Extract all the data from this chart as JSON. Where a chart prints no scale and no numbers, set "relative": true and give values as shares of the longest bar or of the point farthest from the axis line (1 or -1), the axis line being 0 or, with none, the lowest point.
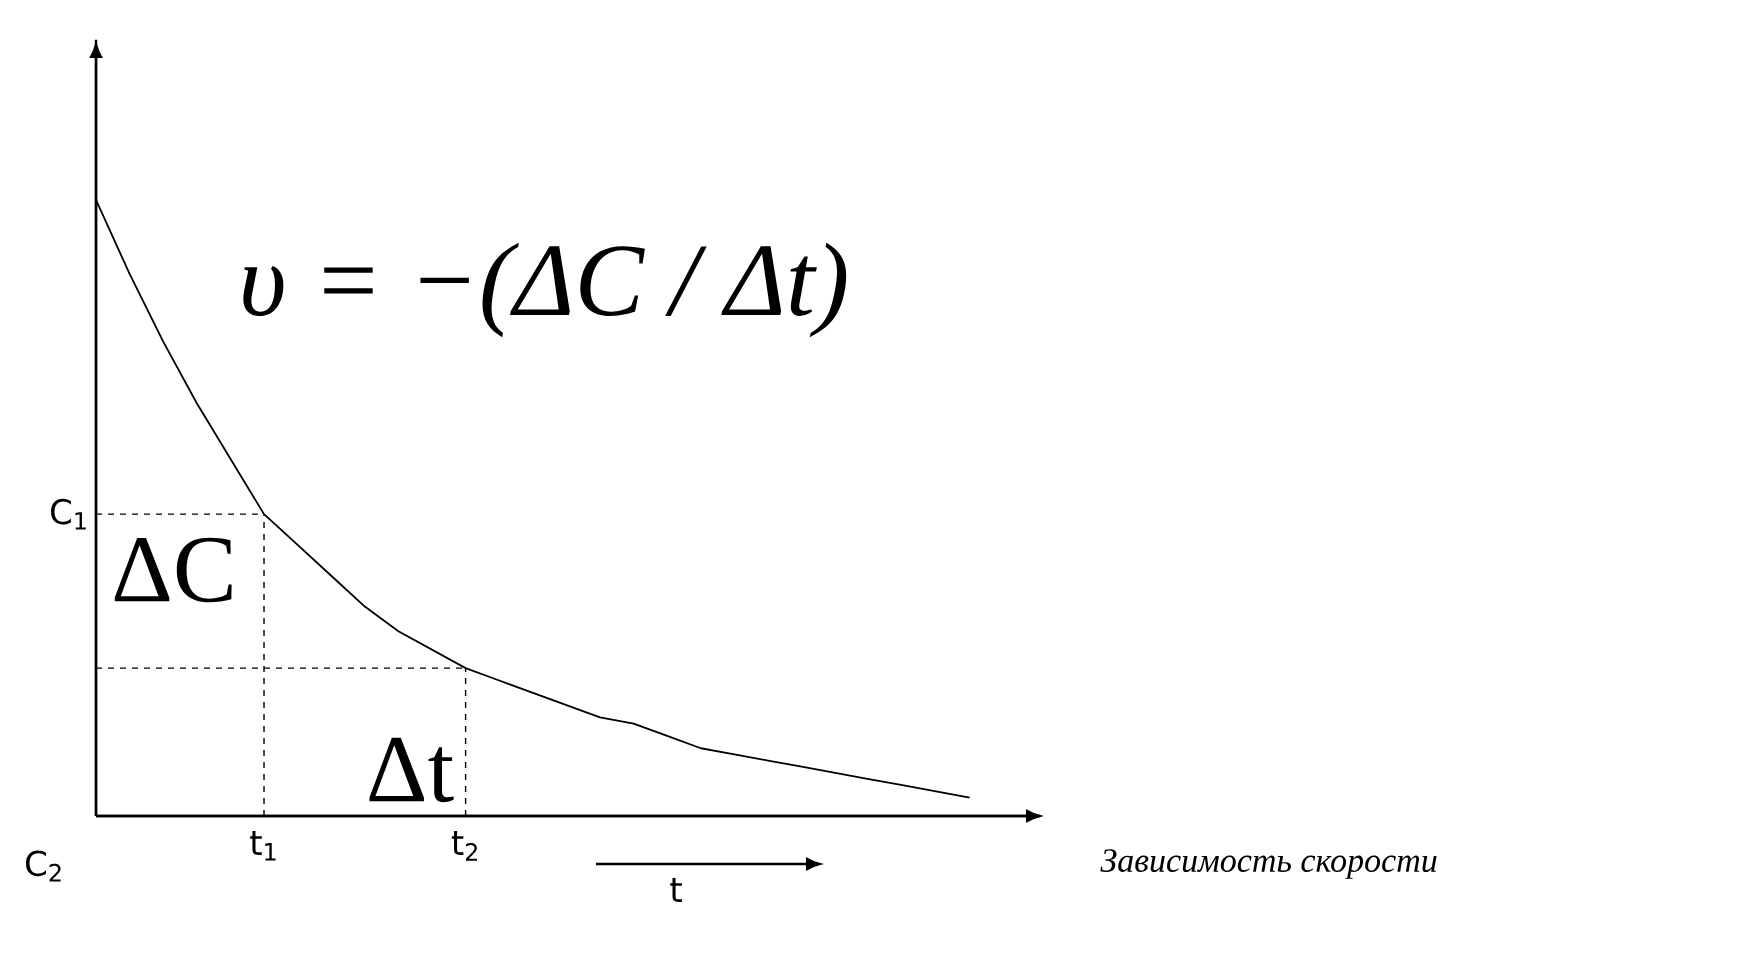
{
  "chart_data": {
    "type": "line",
    "relative": true,
    "categories": [
      null,
      null,
      null,
      null,
      null,
      "t$_{1}$",
      null,
      null,
      null,
      null,
      null,
      "t$_{2}$",
      null,
      null,
      null,
      null,
      null,
      null,
      null,
      null,
      null,
      null,
      null,
      null,
      null,
      null,
      null
    ],
    "values": [
      1,
      0.88,
      0.77,
      0.67,
      0.58,
      0.49,
      0.44,
      0.39,
      0.34,
      0.3,
      0.27,
      0.24,
      0.22,
      0.2,
      0.18,
      0.16,
      0.15,
      0.13,
      0.11,
      0.1,
      0.09,
      0.08,
      0.07,
      0.06,
      0.05,
      0.04,
      0.03
    ],
    "color": "#000000",
    "ref_lines": [
      {
        "axis": "y",
        "value": 0.49,
        "label": "C$_{1}$",
        "line_style": "dashed"
      },
      {
        "axis": "y",
        "value": 0.24,
        "line_style": "dashed"
      },
      {
        "axis": "x",
        "value": "t$_{1}$",
        "line_style": "dashed"
      },
      {
        "axis": "x",
        "value": "t$_{2}$",
        "line_style": "dashed"
      }
    ],
    "annotations": [
      "υ = −(ΔC / Δt)",
      "ΔC",
      "Δt",
      "C$_{2}$",
      "t",
      "Зависимость скорости"
    ]
  }
}
